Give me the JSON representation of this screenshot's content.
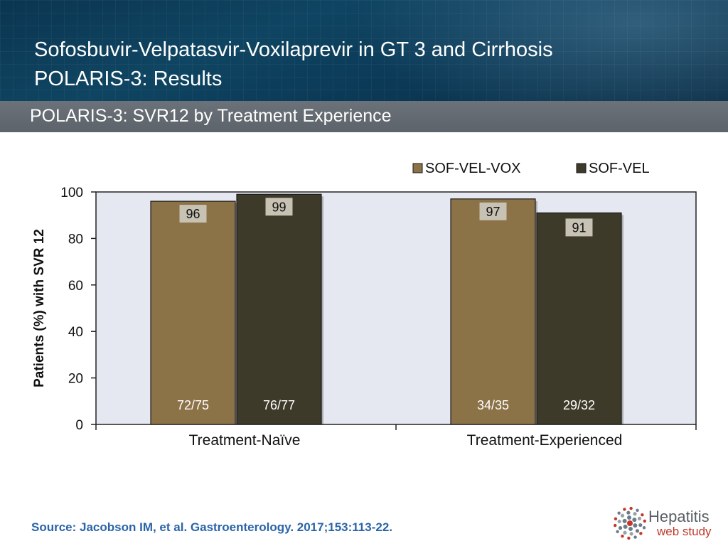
{
  "header": {
    "title_line1": "Sofosbuvir-Velpatasvir-Voxilaprevir in GT 3 and Cirrhosis",
    "title_line2": "POLARIS-3: Results",
    "subtitle": "POLARIS-3: SVR12 by Treatment Experience"
  },
  "chart_data": {
    "type": "bar",
    "title": "",
    "xlabel": "",
    "ylabel": "Patients (%) with SVR 12",
    "ylim": [
      0,
      100
    ],
    "yticks": [
      0,
      20,
      40,
      60,
      80,
      100
    ],
    "categories": [
      "Treatment-Naïve",
      "Treatment-Experienced"
    ],
    "legend_position": "top-right",
    "grid": false,
    "series": [
      {
        "name": "SOF-VEL-VOX",
        "color": "#8c7247",
        "values": [
          96,
          97
        ],
        "counts": [
          "72/75",
          "34/35"
        ]
      },
      {
        "name": "SOF-VEL",
        "color": "#3e3a29",
        "values": [
          99,
          91
        ],
        "counts": [
          "76/77",
          "29/32"
        ]
      }
    ]
  },
  "footer": {
    "source": "Source: Jacobson IM, et al. Gastroenterology. 2017;153:113-22.",
    "logo_line1": "Hepatitis",
    "logo_line2": "web study"
  }
}
